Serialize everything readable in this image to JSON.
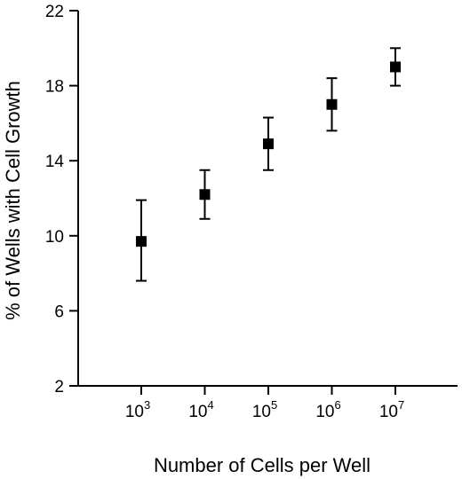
{
  "chart_data": {
    "type": "scatter",
    "title": "",
    "xlabel": "Number of Cells per Well",
    "ylabel": "% of Wells with Cell Growth",
    "x_scale": "log",
    "x_tick_base": "10",
    "x_ticks": [
      {
        "value": 1000,
        "exponent": "3"
      },
      {
        "value": 10000,
        "exponent": "4"
      },
      {
        "value": 100000,
        "exponent": "5"
      },
      {
        "value": 1000000,
        "exponent": "6"
      },
      {
        "value": 10000000,
        "exponent": "7"
      }
    ],
    "y_ticks": [
      2,
      6,
      10,
      14,
      18,
      22
    ],
    "ylim": [
      2,
      22
    ],
    "grid": false,
    "legend": "none",
    "marker": "square",
    "color": "#000000",
    "points": [
      {
        "x": 1000,
        "y": 9.7,
        "y_low": 7.6,
        "y_high": 11.9
      },
      {
        "x": 10000,
        "y": 12.2,
        "y_low": 10.9,
        "y_high": 13.5
      },
      {
        "x": 100000,
        "y": 14.9,
        "y_low": 13.5,
        "y_high": 16.3
      },
      {
        "x": 1000000,
        "y": 17.0,
        "y_low": 15.6,
        "y_high": 18.4
      },
      {
        "x": 10000000,
        "y": 19.0,
        "y_low": 18.0,
        "y_high": 20.0
      }
    ]
  }
}
